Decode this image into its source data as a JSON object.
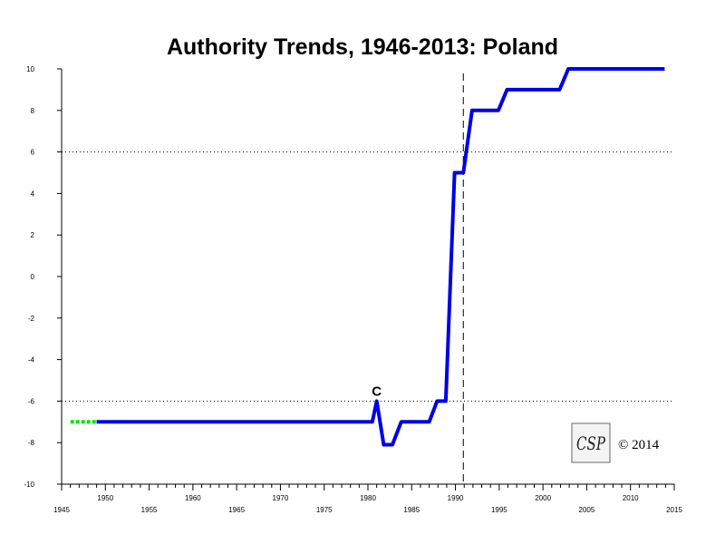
{
  "chart_data": {
    "type": "line",
    "title": "Authority Trends, 1946-2013: Poland",
    "xlabel": "",
    "ylabel": "",
    "xlim": [
      1945,
      2015
    ],
    "ylim": [
      -10,
      10
    ],
    "x_ticks": [
      1945,
      1950,
      1955,
      1960,
      1965,
      1970,
      1975,
      1980,
      1985,
      1990,
      1995,
      2000,
      2005,
      2010,
      2015
    ],
    "y_ticks": [
      10,
      8,
      6,
      4,
      2,
      0,
      -2,
      -4,
      -6,
      -8,
      -10
    ],
    "reference_lines": [
      {
        "axis": "y",
        "value": 6,
        "style": "dotted"
      },
      {
        "axis": "y",
        "value": -6,
        "style": "dotted"
      },
      {
        "axis": "x",
        "value": 1990.9,
        "style": "dashed"
      }
    ],
    "grid": false,
    "legend": "none",
    "series": [
      {
        "color": "#00e600",
        "style": "dashed",
        "points": [
          [
            1946,
            -7
          ],
          [
            1949,
            -7
          ]
        ]
      },
      {
        "color": "#0000e6",
        "style": "solid",
        "points": [
          [
            1949,
            -7
          ],
          [
            1980.5,
            -7
          ],
          [
            1981,
            -6
          ],
          [
            1981.8,
            -8.1
          ],
          [
            1982.8,
            -8.1
          ],
          [
            1983.8,
            -7
          ],
          [
            1987,
            -7
          ],
          [
            1987.9,
            -6
          ],
          [
            1988.9,
            -6
          ],
          [
            1989.9,
            5
          ],
          [
            1990.9,
            5
          ],
          [
            1991.9,
            8
          ],
          [
            1994.9,
            8
          ],
          [
            1995.9,
            9
          ],
          [
            2001.9,
            9
          ],
          [
            2002.9,
            10
          ],
          [
            2013.9,
            10
          ]
        ]
      }
    ],
    "annotations": [
      {
        "text": "C",
        "x": 1981,
        "y": -6
      }
    ]
  },
  "watermark": {
    "logo_text": "CSP",
    "copyright": "© 2014"
  },
  "colors": {
    "authority_line": "#0000e6",
    "pre_period_line": "#00e600",
    "axis": "#000000"
  }
}
